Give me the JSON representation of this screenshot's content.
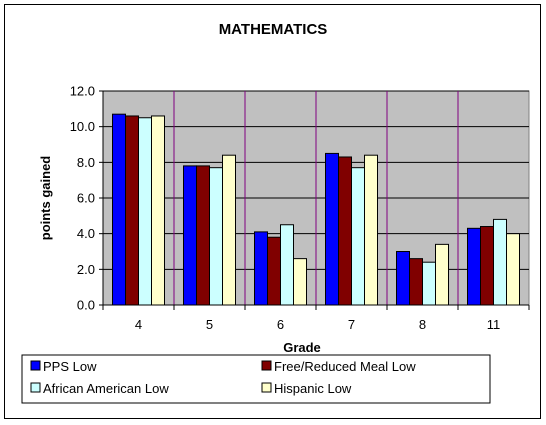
{
  "chart_data": {
    "type": "bar",
    "title": "MATHEMATICS",
    "xlabel": "Grade",
    "ylabel": "points gained",
    "ylim": [
      0,
      12
    ],
    "ytick_step": 2,
    "ytick_labels": [
      "0.0",
      "2.0",
      "4.0",
      "6.0",
      "8.0",
      "10.0",
      "12.0"
    ],
    "categories": [
      "4",
      "5",
      "6",
      "7",
      "8",
      "11"
    ],
    "grid": true,
    "legend_position": "bottom",
    "series": [
      {
        "name": "PPS Low",
        "color": "#0000FF",
        "values": [
          10.7,
          7.8,
          4.1,
          8.5,
          3.0,
          4.3
        ]
      },
      {
        "name": "Free/Reduced Meal Low",
        "color": "#800000",
        "values": [
          10.6,
          7.8,
          3.8,
          8.3,
          2.6,
          4.4
        ]
      },
      {
        "name": "African American Low",
        "color": "#CCFFFF",
        "values": [
          10.5,
          7.7,
          4.5,
          7.7,
          2.4,
          4.8
        ]
      },
      {
        "name": "Hispanic Low",
        "color": "#FFFFCC",
        "values": [
          10.6,
          8.4,
          2.6,
          8.4,
          3.4,
          4.0
        ]
      }
    ],
    "plot_background": "#C0C0C0",
    "gridline_color": "#000000",
    "category_divider_color": "#800080"
  }
}
